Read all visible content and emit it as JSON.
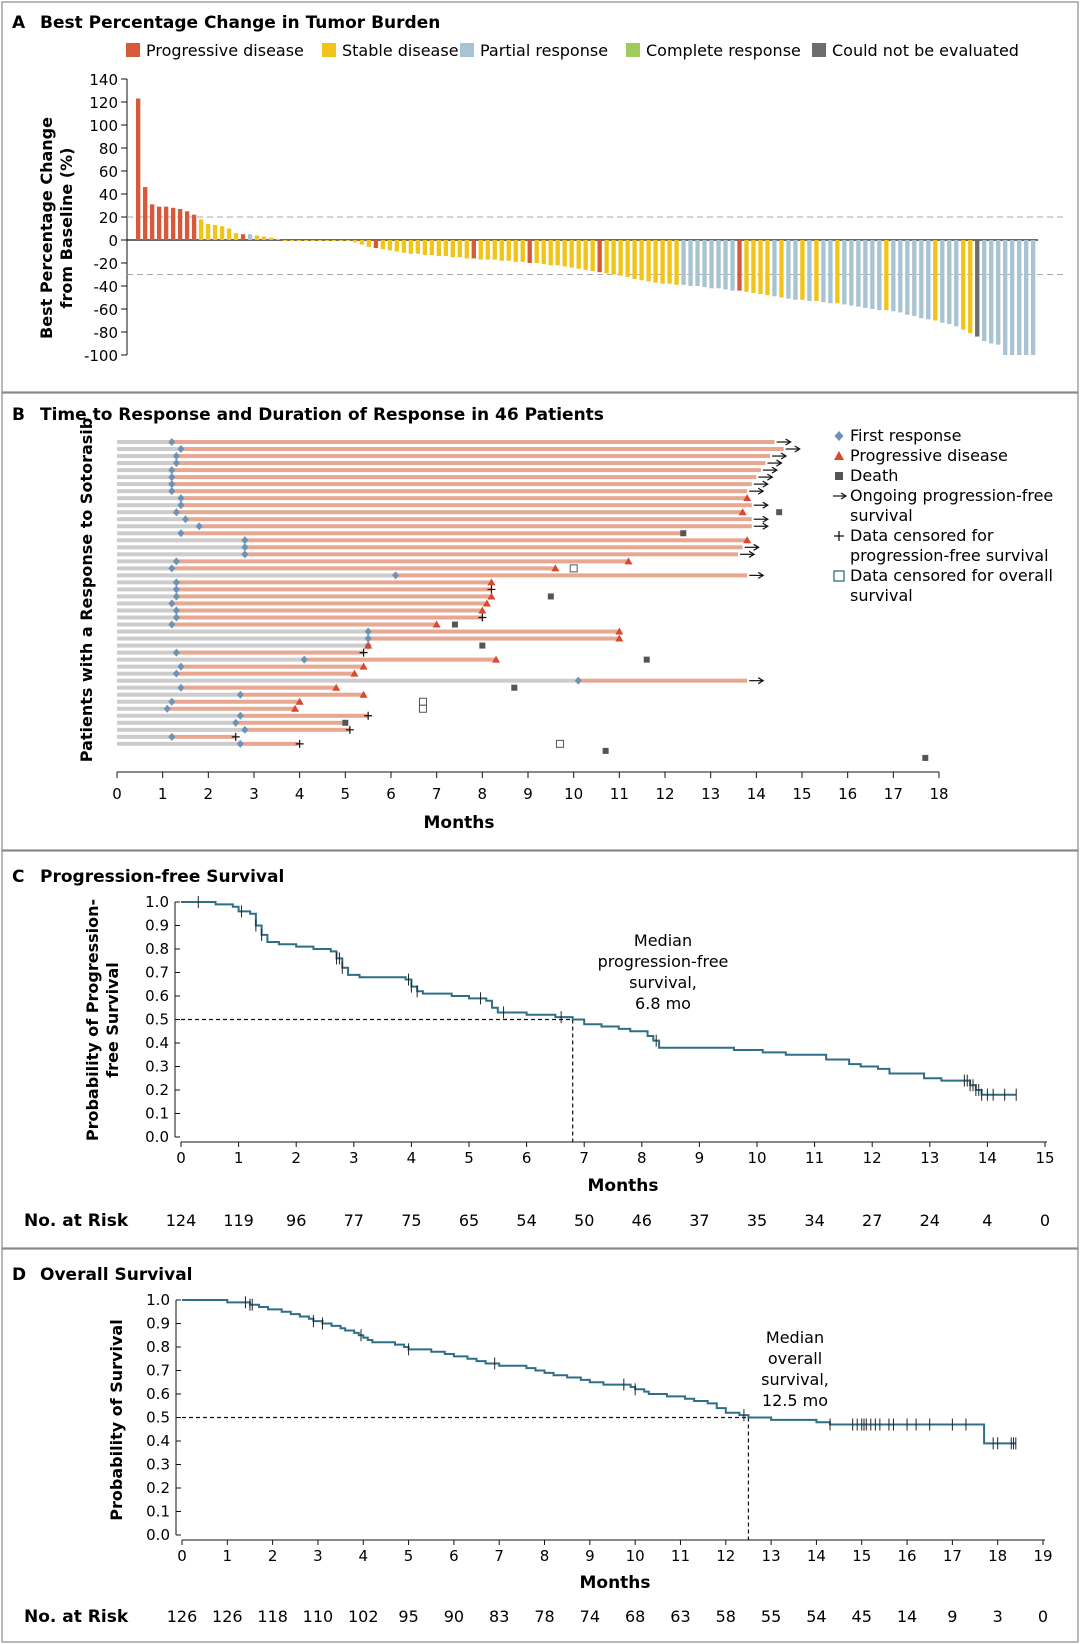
{
  "colors": {
    "progressive": "#d65a3a",
    "stable": "#f0c419",
    "partial": "#a8c3d1",
    "complete": "#9fcb5a",
    "not_evaluated": "#6d6d6d",
    "km_line": "#2f6f86",
    "orange_bar": "#e7a791",
    "gray_bar": "#cccccc",
    "diamond": "#6b93b7",
    "triangle": "#d9482f",
    "death": "#555555"
  },
  "panelA": {
    "label": "A",
    "title": "Best Percentage Change in Tumor Burden",
    "legend": [
      {
        "key": "progressive",
        "text": "Progressive disease"
      },
      {
        "key": "stable",
        "text": "Stable disease"
      },
      {
        "key": "partial",
        "text": "Partial response"
      },
      {
        "key": "complete",
        "text": "Complete response"
      },
      {
        "key": "not_evaluated",
        "text": "Could not be evaluated"
      }
    ],
    "ylabel_line1": "Best Percentage Change",
    "ylabel_line2": "from Baseline (%)"
  },
  "panelB": {
    "label": "B",
    "title": "Time to Response and Duration of Response in 46 Patients",
    "ylabel": "Patients with a Response to Sotorasib",
    "xlabel": "Months",
    "legend": [
      {
        "sym": "diamond",
        "lines": [
          "First response"
        ]
      },
      {
        "sym": "triangle",
        "lines": [
          "Progressive disease"
        ]
      },
      {
        "sym": "death",
        "lines": [
          "Death"
        ]
      },
      {
        "sym": "arrow",
        "lines": [
          "Ongoing progression-free",
          "survival"
        ]
      },
      {
        "sym": "plus",
        "lines": [
          "Data censored for",
          "progression-free survival"
        ]
      },
      {
        "sym": "square",
        "lines": [
          "Data censored for overall",
          "survival"
        ]
      }
    ]
  },
  "panelC": {
    "label": "C",
    "title": "Progression-free Survival",
    "ylabel_line1": "Probability of Progression-",
    "ylabel_line2": "free Survival",
    "xlabel": "Months",
    "annotation": [
      "Median",
      "progression-free",
      "survival,",
      "6.8 mo"
    ],
    "risk_label": "No. at Risk",
    "risk": [
      "124",
      "119",
      "96",
      "77",
      "75",
      "65",
      "54",
      "50",
      "46",
      "37",
      "35",
      "34",
      "27",
      "24",
      "4",
      "0"
    ]
  },
  "panelD": {
    "label": "D",
    "title": "Overall Survival",
    "ylabel": "Probability of Survival",
    "xlabel": "Months",
    "annotation": [
      "Median",
      "overall",
      "survival,",
      "12.5 mo"
    ],
    "risk_label": "No. at Risk",
    "risk": [
      "126",
      "126",
      "118",
      "110",
      "102",
      "95",
      "90",
      "83",
      "78",
      "74",
      "68",
      "63",
      "58",
      "55",
      "54",
      "45",
      "14",
      "9",
      "3",
      "0"
    ]
  },
  "chart_data": [
    {
      "type": "bar",
      "title": "Best Percentage Change in Tumor Burden",
      "ylabel": "Best Percentage Change from Baseline (%)",
      "ylim": [
        -100,
        140
      ],
      "yticks": [
        140,
        120,
        100,
        80,
        60,
        40,
        20,
        0,
        -20,
        -40,
        -60,
        -80,
        -100
      ],
      "reference_lines": [
        20,
        -30
      ],
      "values": [
        123,
        46,
        31,
        29,
        29,
        28,
        27,
        25,
        22,
        18,
        14,
        13,
        12,
        10,
        6,
        5,
        5,
        4,
        3,
        2,
        1,
        0,
        0,
        0,
        0,
        0,
        0,
        0,
        0,
        0,
        0,
        -2,
        -4,
        -6,
        -7,
        -8,
        -9,
        -10,
        -11,
        -12,
        -12,
        -13,
        -13,
        -14,
        -14,
        -15,
        -15,
        -16,
        -16,
        -17,
        -17,
        -17,
        -18,
        -18,
        -19,
        -19,
        -20,
        -20,
        -21,
        -22,
        -22,
        -23,
        -24,
        -25,
        -26,
        -27,
        -28,
        -29,
        -30,
        -31,
        -32,
        -34,
        -35,
        -36,
        -37,
        -38,
        -38,
        -39,
        -39,
        -40,
        -40,
        -41,
        -42,
        -42,
        -43,
        -44,
        -44,
        -45,
        -46,
        -47,
        -48,
        -49,
        -50,
        -51,
        -52,
        -52,
        -53,
        -53,
        -54,
        -55,
        -55,
        -56,
        -57,
        -58,
        -59,
        -60,
        -61,
        -61,
        -62,
        -63,
        -65,
        -66,
        -68,
        -69,
        -70,
        -72,
        -73,
        -75,
        -78,
        -81,
        -84,
        -88,
        -90,
        -91,
        -100,
        -100,
        -100,
        -100,
        -100
      ],
      "categories_response": [
        "PD",
        "PD",
        "PD",
        "PD",
        "PD",
        "PD",
        "PD",
        "PD",
        "PD",
        "SD",
        "SD",
        "SD",
        "SD",
        "SD",
        "SD",
        "PD",
        "PR",
        "SD",
        "SD",
        "SD",
        "SD",
        "SD",
        "SD",
        "SD",
        "SD",
        "SD",
        "SD",
        "SD",
        "SD",
        "SD",
        "SD",
        "SD",
        "SD",
        "SD",
        "PD",
        "SD",
        "SD",
        "SD",
        "SD",
        "SD",
        "SD",
        "SD",
        "SD",
        "SD",
        "SD",
        "SD",
        "SD",
        "SD",
        "PD",
        "SD",
        "SD",
        "SD",
        "SD",
        "SD",
        "SD",
        "SD",
        "PD",
        "SD",
        "SD",
        "SD",
        "SD",
        "SD",
        "SD",
        "SD",
        "SD",
        "SD",
        "PD",
        "SD",
        "SD",
        "SD",
        "SD",
        "SD",
        "SD",
        "SD",
        "SD",
        "SD",
        "SD",
        "SD",
        "PR",
        "PR",
        "PR",
        "PR",
        "PR",
        "PR",
        "PR",
        "PR",
        "PD",
        "SD",
        "SD",
        "SD",
        "SD",
        "PR",
        "SD",
        "PR",
        "PR",
        "SD",
        "PR",
        "SD",
        "PR",
        "PR",
        "SD",
        "PR",
        "PR",
        "PR",
        "PR",
        "PR",
        "PR",
        "SD",
        "PR",
        "PR",
        "PR",
        "PR",
        "PR",
        "PR",
        "SD",
        "PR",
        "PR",
        "PR",
        "SD",
        "SD",
        "NE",
        "PR",
        "PR",
        "PR",
        "PR",
        "PR",
        "PR",
        "PR",
        "PR",
        "PR",
        "PR",
        "PR",
        "PR",
        "CR",
        "CR",
        "CR",
        "CR",
        "CR"
      ]
    },
    {
      "type": "swimmer",
      "title": "Time to Response and Duration of Response in 46 Patients",
      "xlabel": "Months",
      "xlim": [
        0,
        18
      ],
      "patients": [
        {
          "end": 14.4,
          "resp": 1.2,
          "ev": "arrow"
        },
        {
          "end": 14.6,
          "resp": 1.4,
          "ev": "arrow"
        },
        {
          "end": 14.3,
          "resp": 1.3,
          "ev": "arrow"
        },
        {
          "end": 14.2,
          "resp": 1.3,
          "ev": "arrow"
        },
        {
          "end": 14.1,
          "resp": 1.2,
          "ev": "arrow"
        },
        {
          "end": 14.0,
          "resp": 1.2,
          "ev": "arrow"
        },
        {
          "end": 13.9,
          "resp": 1.2,
          "ev": "arrow"
        },
        {
          "end": 13.8,
          "resp": 1.2,
          "ev": "arrow"
        },
        {
          "end": 13.8,
          "resp": 1.4,
          "ev": "pd",
          "pd": 13.8
        },
        {
          "end": 13.9,
          "resp": 1.4,
          "ev": "arrow"
        },
        {
          "end": 13.7,
          "resp": 1.3,
          "ev": "pd",
          "pd": 13.7,
          "death": 14.5
        },
        {
          "end": 13.9,
          "resp": 1.5,
          "ev": "arrow"
        },
        {
          "end": 13.9,
          "resp": 1.8,
          "ev": "arrow"
        },
        {
          "end": 12.4,
          "resp": 1.4,
          "ev": "death",
          "death": 12.4
        },
        {
          "end": 13.8,
          "resp": 2.8,
          "ev": "pd",
          "pd": 13.8
        },
        {
          "end": 13.7,
          "resp": 2.8,
          "ev": "arrow"
        },
        {
          "end": 13.6,
          "resp": 2.8,
          "ev": "arrow"
        },
        {
          "end": 11.2,
          "resp": 1.3,
          "ev": "pd",
          "pd": 11.2
        },
        {
          "end": 9.6,
          "resp": 1.2,
          "ev": "pd",
          "pd": 9.6,
          "os_cens": 10.0
        },
        {
          "end": 13.8,
          "resp": 6.1,
          "ev": "arrow"
        },
        {
          "end": 8.2,
          "resp": 1.3,
          "ev": "pd",
          "pd": 8.2
        },
        {
          "end": 8.2,
          "resp": 1.3,
          "ev": "plus"
        },
        {
          "end": 8.2,
          "resp": 1.3,
          "ev": "pd",
          "pd": 8.2,
          "death": 9.5
        },
        {
          "end": 8.1,
          "resp": 1.2,
          "ev": "pd",
          "pd": 8.1
        },
        {
          "end": 8.0,
          "resp": 1.3,
          "ev": "pd",
          "pd": 8.0
        },
        {
          "end": 8.0,
          "resp": 1.3,
          "ev": "plus"
        },
        {
          "end": 7.0,
          "resp": 1.2,
          "ev": "pd",
          "pd": 7.0,
          "death": 7.4
        },
        {
          "end": 11.0,
          "resp": 5.5,
          "ev": "pd",
          "pd": 11.0
        },
        {
          "end": 11.0,
          "resp": 5.5,
          "ev": "pd",
          "pd": 11.0
        },
        {
          "end": 5.5,
          "resp": 5.5,
          "ev": "pd",
          "pd": 5.5,
          "death": 8.0
        },
        {
          "end": 5.4,
          "resp": 1.3,
          "ev": "plus"
        },
        {
          "end": 8.3,
          "resp": 4.1,
          "ev": "pd",
          "pd": 8.3,
          "death": 11.6
        },
        {
          "end": 5.4,
          "resp": 1.4,
          "ev": "pd",
          "pd": 5.4
        },
        {
          "end": 5.2,
          "resp": 1.3,
          "ev": "pd",
          "pd": 5.2
        },
        {
          "end": 13.8,
          "resp": 10.1,
          "ev": "arrow"
        },
        {
          "end": 4.8,
          "resp": 1.4,
          "ev": "pd",
          "pd": 4.8,
          "death": 8.7
        },
        {
          "end": 5.4,
          "resp": 2.7,
          "ev": "pd",
          "pd": 5.4
        },
        {
          "end": 4.0,
          "resp": 1.2,
          "ev": "pd",
          "pd": 4.0,
          "os_cens": 6.7
        },
        {
          "end": 3.9,
          "resp": 1.1,
          "ev": "pd",
          "pd": 3.9,
          "os_cens": 6.7
        },
        {
          "end": 5.5,
          "resp": 2.7,
          "ev": "plus"
        },
        {
          "end": 5.0,
          "resp": 2.6,
          "ev": "death",
          "death": 5.0
        },
        {
          "end": 5.1,
          "resp": 2.8,
          "ev": "plus"
        },
        {
          "end": 2.6,
          "resp": 1.2,
          "ev": "plus"
        },
        {
          "end": 4.0,
          "resp": 2.7,
          "ev": "plus",
          "os_cens": 9.7
        },
        {
          "end": 0.0,
          "resp": 0.0,
          "ev": "death_only",
          "death": 10.7
        },
        {
          "end": 0.0,
          "resp": 0.0,
          "ev": "death_only",
          "death": 17.7
        }
      ]
    },
    {
      "type": "line",
      "title": "Progression-free Survival",
      "xlabel": "Months",
      "ylabel": "Probability of Progression-free Survival",
      "xlim": [
        0,
        15
      ],
      "ylim": [
        0,
        1.0
      ],
      "median": 6.8,
      "steps": [
        [
          0,
          1.0
        ],
        [
          0.6,
          0.99
        ],
        [
          0.9,
          0.98
        ],
        [
          1.0,
          0.96
        ],
        [
          1.2,
          0.95
        ],
        [
          1.3,
          0.9
        ],
        [
          1.4,
          0.86
        ],
        [
          1.5,
          0.83
        ],
        [
          1.7,
          0.82
        ],
        [
          2.0,
          0.81
        ],
        [
          2.3,
          0.8
        ],
        [
          2.6,
          0.79
        ],
        [
          2.7,
          0.76
        ],
        [
          2.8,
          0.72
        ],
        [
          2.9,
          0.69
        ],
        [
          3.1,
          0.68
        ],
        [
          3.9,
          0.67
        ],
        [
          4.0,
          0.64
        ],
        [
          4.1,
          0.62
        ],
        [
          4.2,
          0.61
        ],
        [
          4.7,
          0.6
        ],
        [
          5.0,
          0.59
        ],
        [
          5.3,
          0.58
        ],
        [
          5.4,
          0.55
        ],
        [
          5.5,
          0.53
        ],
        [
          6.0,
          0.52
        ],
        [
          6.5,
          0.51
        ],
        [
          6.8,
          0.5
        ],
        [
          7.0,
          0.48
        ],
        [
          7.3,
          0.47
        ],
        [
          7.6,
          0.46
        ],
        [
          7.8,
          0.45
        ],
        [
          8.1,
          0.43
        ],
        [
          8.2,
          0.41
        ],
        [
          8.3,
          0.38
        ],
        [
          9.6,
          0.37
        ],
        [
          10.1,
          0.36
        ],
        [
          10.5,
          0.35
        ],
        [
          11.2,
          0.33
        ],
        [
          11.6,
          0.31
        ],
        [
          11.8,
          0.3
        ],
        [
          12.1,
          0.29
        ],
        [
          12.3,
          0.27
        ],
        [
          12.9,
          0.25
        ],
        [
          13.2,
          0.24
        ],
        [
          13.7,
          0.22
        ],
        [
          13.8,
          0.2
        ],
        [
          13.9,
          0.18
        ],
        [
          14.5,
          0.18
        ]
      ],
      "censor_times": [
        0.3,
        1.05,
        1.3,
        1.4,
        2.7,
        2.75,
        2.8,
        3.95,
        4.0,
        4.1,
        5.2,
        5.6,
        6.6,
        8.25,
        13.6,
        13.65,
        13.7,
        13.75,
        13.8,
        13.85,
        13.9,
        14.0,
        14.1,
        14.3,
        14.5
      ]
    },
    {
      "type": "line",
      "title": "Overall Survival",
      "xlabel": "Months",
      "ylabel": "Probability of Survival",
      "xlim": [
        0,
        19
      ],
      "ylim": [
        0,
        1.0
      ],
      "median": 12.5,
      "steps": [
        [
          0,
          1.0
        ],
        [
          1.0,
          0.99
        ],
        [
          1.5,
          0.98
        ],
        [
          1.7,
          0.97
        ],
        [
          1.9,
          0.96
        ],
        [
          2.2,
          0.95
        ],
        [
          2.4,
          0.94
        ],
        [
          2.6,
          0.93
        ],
        [
          2.8,
          0.92
        ],
        [
          2.9,
          0.91
        ],
        [
          3.1,
          0.9
        ],
        [
          3.3,
          0.89
        ],
        [
          3.5,
          0.88
        ],
        [
          3.6,
          0.87
        ],
        [
          3.8,
          0.86
        ],
        [
          3.9,
          0.85
        ],
        [
          4.0,
          0.84
        ],
        [
          4.1,
          0.83
        ],
        [
          4.2,
          0.82
        ],
        [
          4.7,
          0.81
        ],
        [
          4.9,
          0.8
        ],
        [
          5.0,
          0.79
        ],
        [
          5.5,
          0.78
        ],
        [
          5.8,
          0.77
        ],
        [
          6.0,
          0.76
        ],
        [
          6.3,
          0.75
        ],
        [
          6.5,
          0.74
        ],
        [
          6.7,
          0.73
        ],
        [
          7.0,
          0.72
        ],
        [
          7.6,
          0.71
        ],
        [
          7.8,
          0.7
        ],
        [
          8.0,
          0.69
        ],
        [
          8.2,
          0.68
        ],
        [
          8.5,
          0.67
        ],
        [
          8.8,
          0.66
        ],
        [
          9.0,
          0.65
        ],
        [
          9.3,
          0.64
        ],
        [
          9.9,
          0.63
        ],
        [
          10.0,
          0.62
        ],
        [
          10.2,
          0.61
        ],
        [
          10.3,
          0.6
        ],
        [
          10.7,
          0.59
        ],
        [
          11.1,
          0.58
        ],
        [
          11.3,
          0.57
        ],
        [
          11.6,
          0.56
        ],
        [
          11.8,
          0.54
        ],
        [
          12.0,
          0.52
        ],
        [
          12.3,
          0.51
        ],
        [
          12.5,
          0.5
        ],
        [
          13.0,
          0.49
        ],
        [
          14.0,
          0.48
        ],
        [
          14.3,
          0.47
        ],
        [
          17.6,
          0.47
        ],
        [
          17.7,
          0.39
        ],
        [
          18.4,
          0.39
        ]
      ],
      "censor_times": [
        1.4,
        1.5,
        1.55,
        2.9,
        3.1,
        3.95,
        5.0,
        6.9,
        9.75,
        10.0,
        12.4,
        14.3,
        14.8,
        14.9,
        15.0,
        15.05,
        15.1,
        15.2,
        15.3,
        15.4,
        15.6,
        15.7,
        16.0,
        16.2,
        16.5,
        17.0,
        17.3,
        17.9,
        18.0,
        18.3,
        18.35,
        18.4
      ]
    }
  ]
}
